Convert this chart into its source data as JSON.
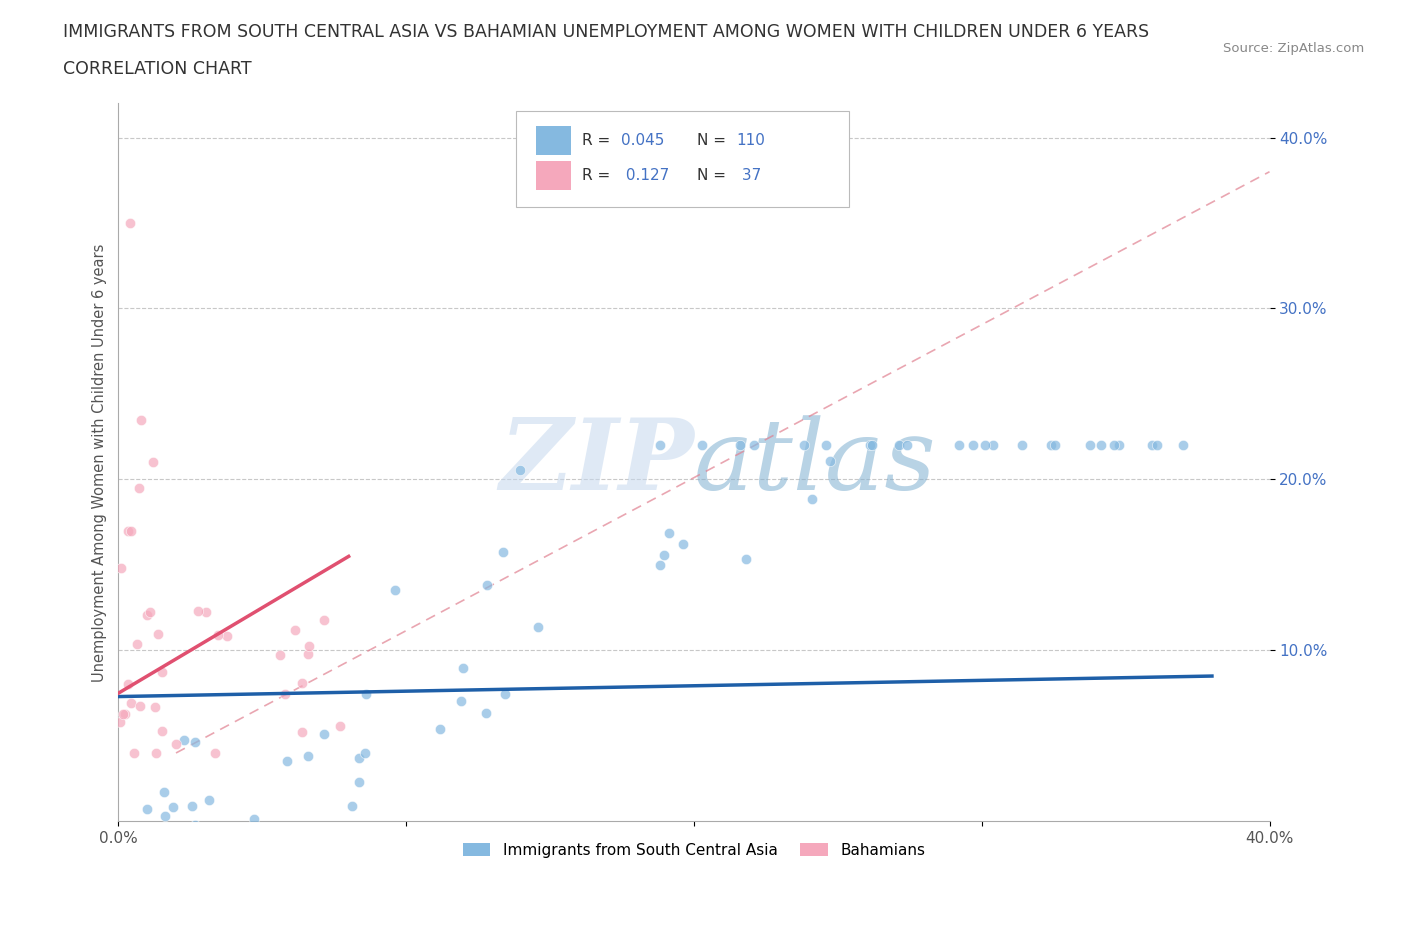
{
  "title": "IMMIGRANTS FROM SOUTH CENTRAL ASIA VS BAHAMIAN UNEMPLOYMENT AMONG WOMEN WITH CHILDREN UNDER 6 YEARS",
  "subtitle": "CORRELATION CHART",
  "source": "Source: ZipAtlas.com",
  "ylabel": "Unemployment Among Women with Children Under 6 years",
  "xlim": [
    0.0,
    0.4
  ],
  "ylim": [
    0.0,
    0.42
  ],
  "background_color": "#ffffff",
  "watermark_text": "ZIPatlas",
  "blue_color": "#85b9e0",
  "pink_color": "#f5a8bc",
  "blue_line_color": "#1e5fa8",
  "pink_line_color": "#e05070",
  "dashed_line_color": "#e08090",
  "legend_blue_label": "Immigrants from South Central Asia",
  "legend_pink_label": "Bahamians",
  "R_blue": 0.045,
  "N_blue": 110,
  "R_pink": 0.127,
  "N_pink": 37,
  "grid_color": "#c8c8c8",
  "tick_color": "#555555",
  "title_color": "#333333",
  "right_axis_label_color": "#4472c4",
  "legend_R_N_color": "#4472c4"
}
